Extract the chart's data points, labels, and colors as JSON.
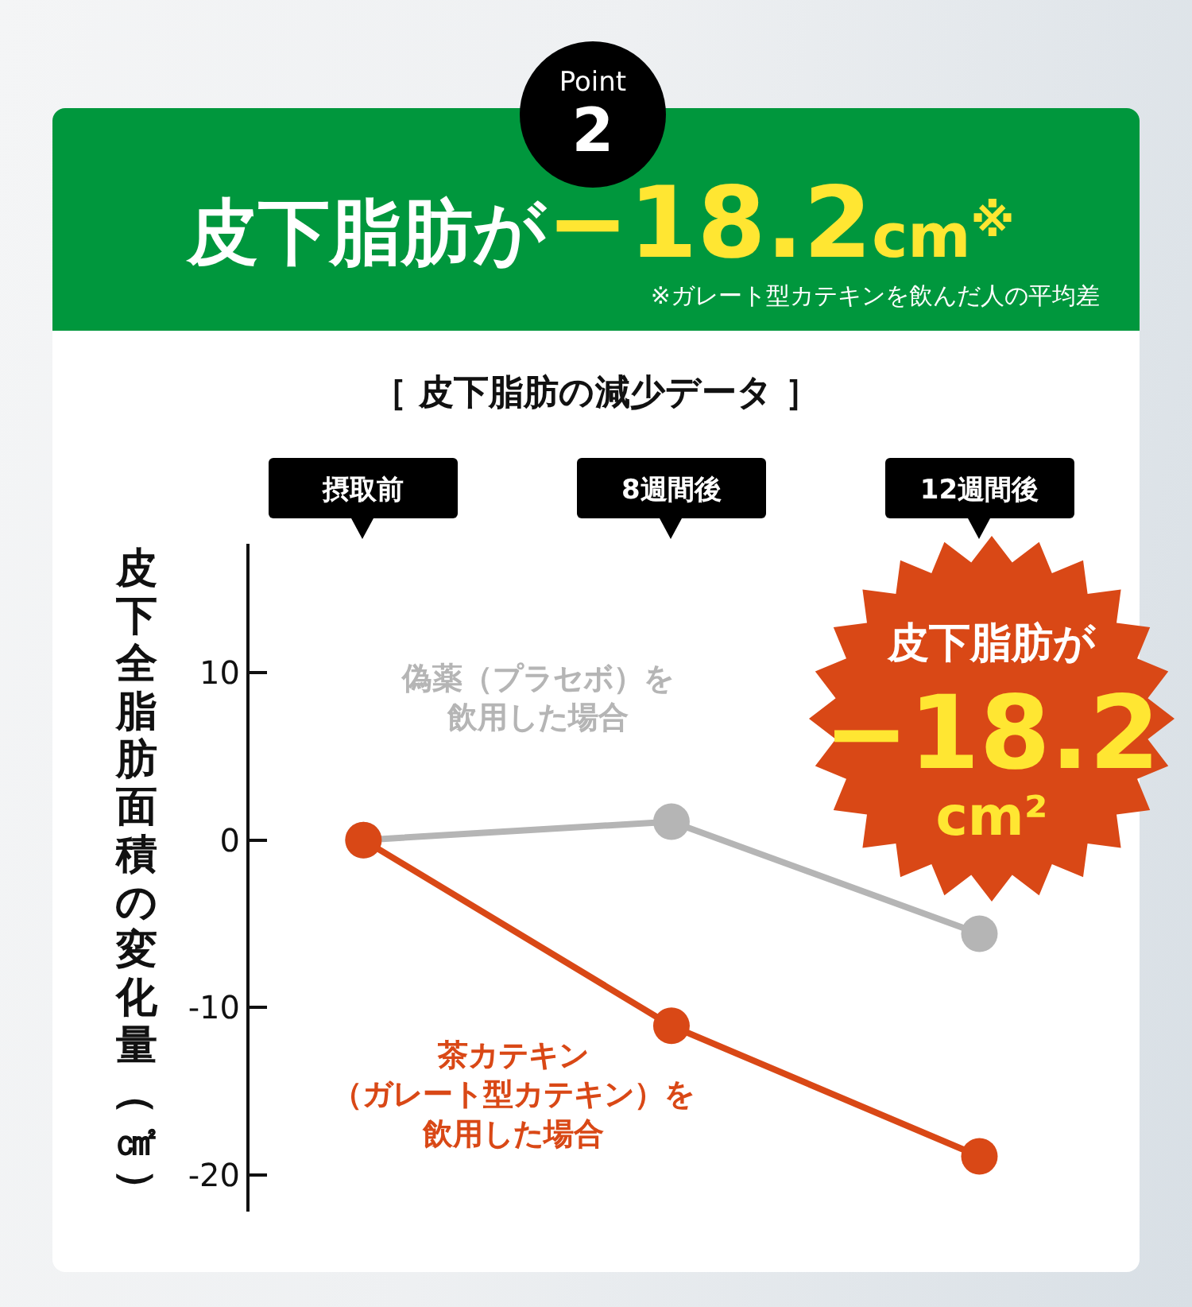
{
  "chart_data": {
    "type": "line",
    "title": "［ 皮下脂肪の減少データ ］",
    "ylabel": "皮下全脂肪面積の変化量（㎠）",
    "categories": [
      "摂取前",
      "8週間後",
      "12週間後"
    ],
    "series": [
      {
        "name": "偽薬（プラセボ）を飲用した場合",
        "color": "#b5b5b5",
        "values": [
          0,
          1.1,
          -5.6
        ]
      },
      {
        "name": "茶カテキン（ガレート型カテキン）を飲用した場合",
        "color": "#d94816",
        "values": [
          0,
          -11.1,
          -18.9
        ]
      }
    ],
    "ylim": [
      -22.2,
      17.7
    ],
    "yticks": [
      -20,
      -10,
      0,
      10
    ],
    "marker": "circle",
    "line_style": "solid",
    "annotations": [
      "Point\n2",
      "皮下脂肪が−18.2cm$^{※}$",
      "※ガレート型カテキンを飲んだ人の平均差",
      "皮下脂肪が\n−18.2\ncm²"
    ]
  }
}
